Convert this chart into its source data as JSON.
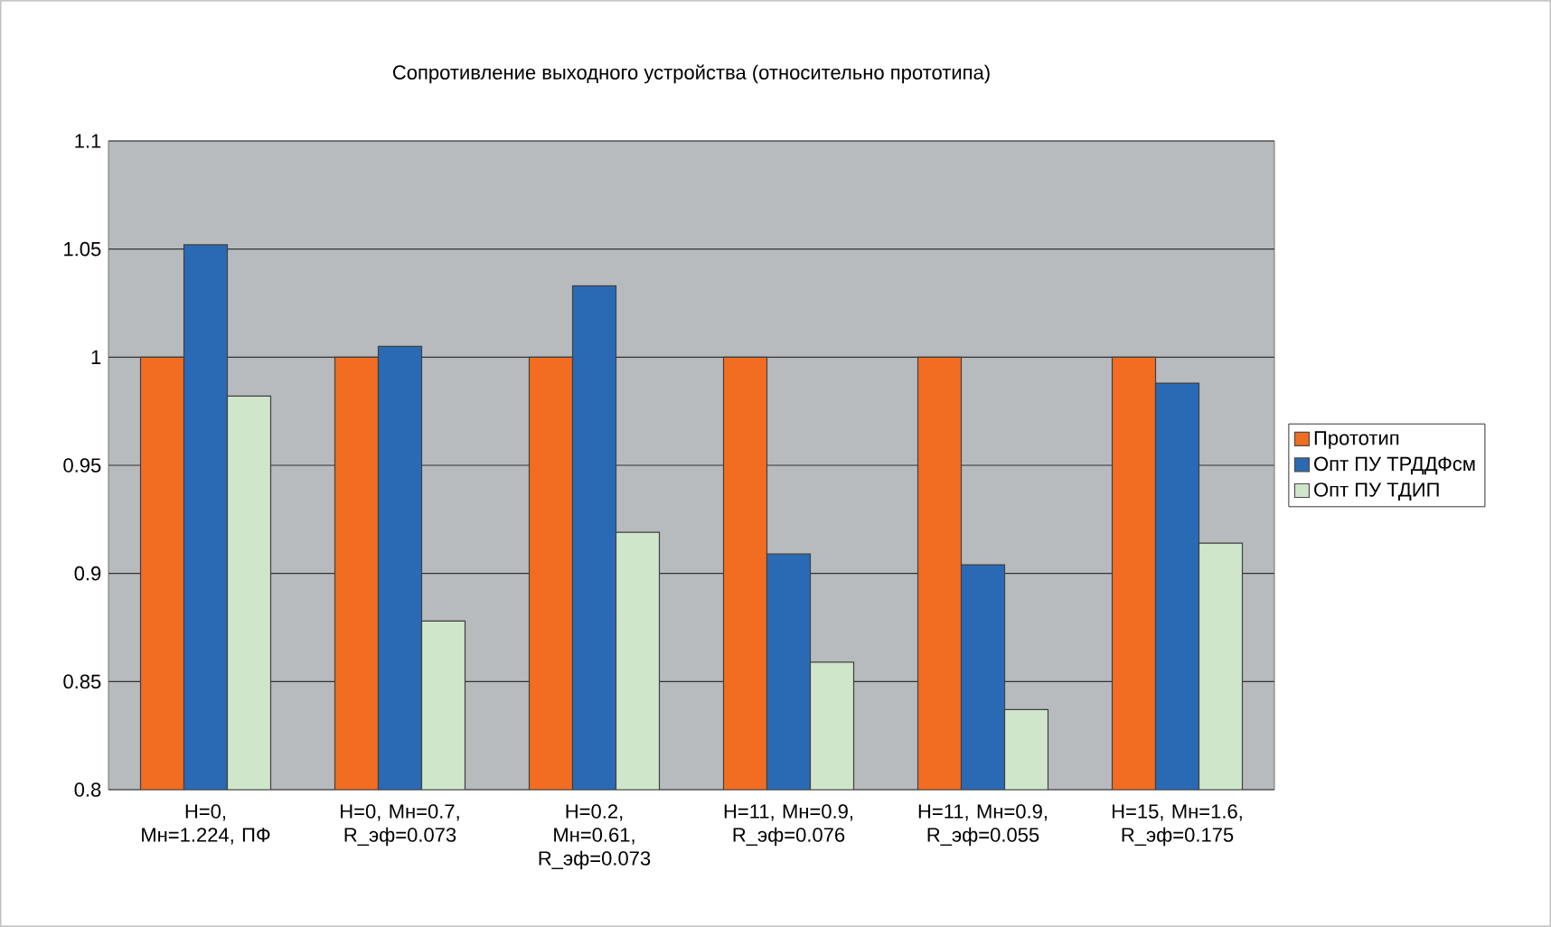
{
  "chart_data": {
    "type": "bar",
    "title": "Сопротивление выходного устройства (относительно прототипа)",
    "categories": [
      "H=0, Мн=1.224, ПФ",
      "H=0, Мн=0.7, R_эф=0.073",
      "H=0.2, Мн=0.61, R_эф=0.073",
      "H=11, Мн=0.9, R_эф=0.076",
      "H=11, Мн=0.9, R_эф=0.055",
      "H=15, Мн=1.6, R_эф=0.175"
    ],
    "series": [
      {
        "name": "Прототип",
        "color": "#f26d21",
        "values": [
          1,
          1,
          1,
          1,
          1,
          1
        ]
      },
      {
        "name": "Опт ПУ ТРДДФсм",
        "color": "#2a6ab5",
        "values": [
          1.052,
          1.005,
          1.033,
          0.909,
          0.904,
          0.988
        ]
      },
      {
        "name": "Опт ПУ ТДИП",
        "color": "#cfe6ca",
        "values": [
          0.982,
          0.878,
          0.919,
          0.859,
          0.837,
          0.914
        ]
      }
    ],
    "ylim": [
      0.8,
      1.1
    ],
    "yticks": [
      0.8,
      0.85,
      0.9,
      0.95,
      1,
      1.05,
      1.1
    ],
    "grid": "y",
    "legend": "right"
  }
}
